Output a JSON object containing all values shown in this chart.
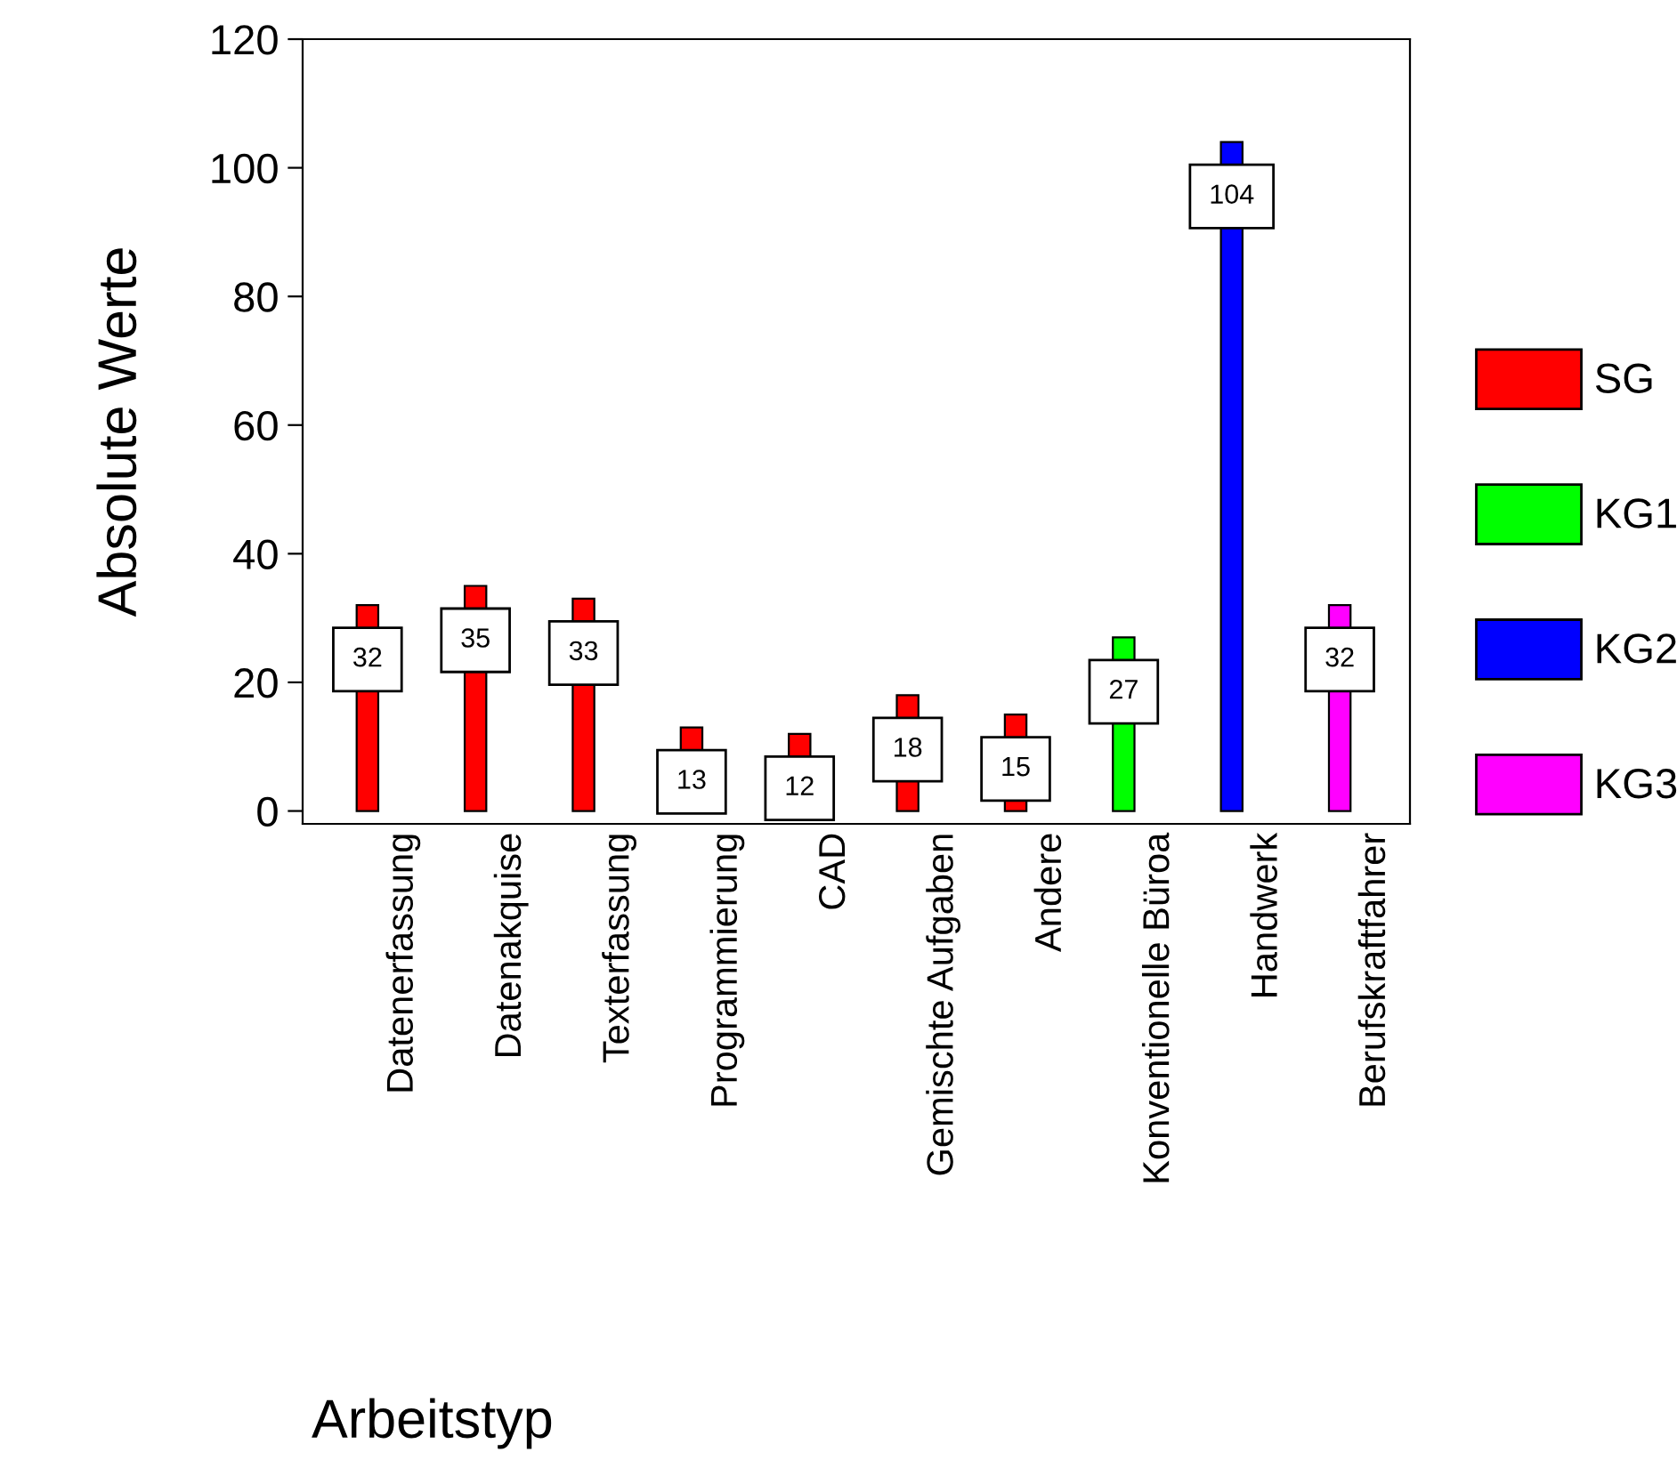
{
  "chart_data": {
    "type": "bar",
    "xlabel": "Arbeitstyp",
    "ylabel": "Absolute Werte",
    "categories": [
      "Datenerfassung",
      "Datenakquise",
      "Texterfassung",
      "Programmierung",
      "CAD",
      "Gemischte Aufgaben",
      "Andere",
      "Konventionelle Büroa",
      "Handwerk",
      "Berufskraftfahrer"
    ],
    "series": [
      {
        "name": "SG",
        "color": "#ff0000",
        "values": [
          32,
          35,
          33,
          13,
          12,
          18,
          15,
          null,
          null,
          null
        ]
      },
      {
        "name": "KG1",
        "color": "#00ff00",
        "values": [
          null,
          null,
          null,
          null,
          null,
          null,
          null,
          27,
          null,
          null
        ]
      },
      {
        "name": "KG2",
        "color": "#0000ff",
        "values": [
          null,
          null,
          null,
          null,
          null,
          null,
          null,
          null,
          104,
          null
        ]
      },
      {
        "name": "KG3",
        "color": "#ff00ff",
        "values": [
          null,
          null,
          null,
          null,
          null,
          null,
          null,
          null,
          null,
          32
        ]
      }
    ],
    "data_labels": true,
    "ylim": [
      -2,
      120
    ],
    "yticks": [
      0,
      20,
      40,
      60,
      80,
      100,
      120
    ],
    "grid": false,
    "legend": "right"
  }
}
